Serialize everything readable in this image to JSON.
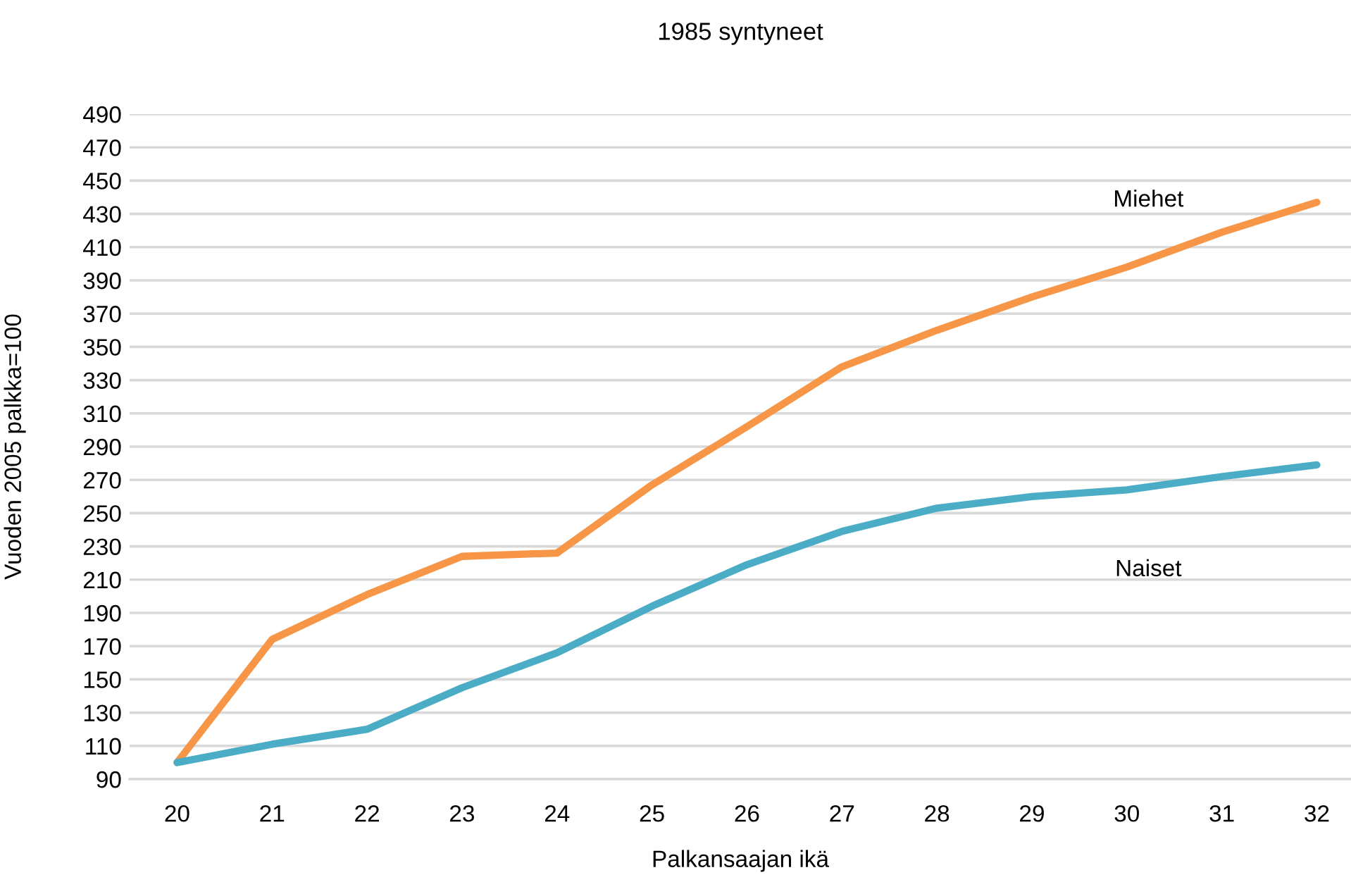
{
  "chart_data": {
    "type": "line",
    "title": "1985 syntyneet",
    "xlabel": "Palkansaajan ikä",
    "ylabel": "Vuoden 2005 palkka=100",
    "categories": [
      "20",
      "21",
      "22",
      "23",
      "24",
      "25",
      "26",
      "27",
      "28",
      "29",
      "30",
      "31",
      "32"
    ],
    "series": [
      {
        "name": "Miehet",
        "color": "#f79646",
        "values": [
          100,
          174,
          201,
          224,
          226,
          267,
          302,
          338,
          360,
          380,
          398,
          419,
          437
        ]
      },
      {
        "name": "Naiset",
        "color": "#4bacc6",
        "values": [
          100,
          111,
          120,
          145,
          166,
          194,
          219,
          239,
          253,
          260,
          264,
          272,
          279
        ]
      }
    ],
    "ylim": [
      90,
      490
    ],
    "yticks": [
      90,
      110,
      130,
      150,
      170,
      190,
      210,
      230,
      250,
      270,
      290,
      310,
      330,
      350,
      370,
      390,
      410,
      430,
      450,
      470,
      490
    ],
    "grid": "y",
    "line_style": "solid"
  }
}
